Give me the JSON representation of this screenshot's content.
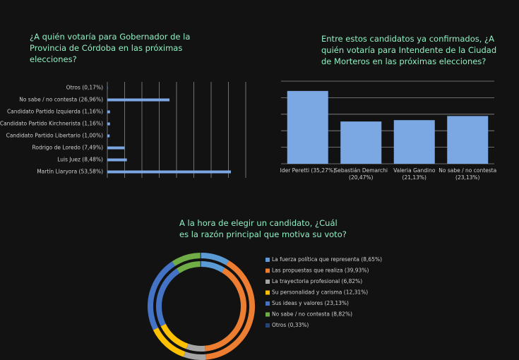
{
  "chart_data": [
    {
      "type": "hbar",
      "title": "¿A quién votaría para Gobernador de la Provincia de Córdoba en las próximas elecciones?",
      "categories": [
        "Otros (0,17%)",
        "No sabe / no contesta (26,96%)",
        "Candidato Partido Izquierda (1,16%)",
        "Candidato Partido Kirchnerista (1,16%)",
        "Candidato Partido Libertario (1,00%)",
        "Rodrigo de Loredo (7,49%)",
        "Luis Juez (8,48%)",
        "Martín Llaryora (53,58%)"
      ],
      "values": [
        0.17,
        26.96,
        1.16,
        1.16,
        1.0,
        7.49,
        8.48,
        53.58
      ],
      "color": "#7ba7e2",
      "xlim": [
        0,
        60
      ],
      "xticks": [
        0,
        7.5,
        15,
        22.5,
        30,
        37.5,
        45,
        52.5,
        60
      ],
      "grid": true
    },
    {
      "type": "bar",
      "title": "Entre estos candidatos ya confirmados, ¿A quién votaría para Intendente de la Ciudad de Morteros en las próximas elecciones?",
      "categories": [
        [
          "Ider Peretti (35,27%)"
        ],
        [
          "Sebastián Demarchi",
          "(20,47%)"
        ],
        [
          "Valeria Gandino",
          "(21,13%)"
        ],
        [
          "No sabe / no contesta",
          "(23,13%)"
        ]
      ],
      "values": [
        35.27,
        20.47,
        21.13,
        23.13
      ],
      "color": "#7ba7e2",
      "ylim": [
        0,
        40
      ],
      "yticks": [
        0,
        8,
        16,
        24,
        32,
        40
      ],
      "grid": true
    },
    {
      "type": "donut",
      "title": "A la hora de elegir un candidato, ¿Cuál es la razón principal que motiva su voto?",
      "categories": [
        "La fuerza política que representa (8,65%)",
        "Las propuestas que realiza (39,93%)",
        "La trayectoria profesional (6,82%)",
        "Su personalidad y carisma (12,31%)",
        "Sus ideas y valores (23,13%)",
        "No sabe / no contesta (8,82%)",
        "Otros (0,33%)"
      ],
      "values": [
        8.65,
        39.93,
        6.82,
        12.31,
        23.13,
        8.82,
        0.33
      ],
      "colors": [
        "#5b9bd5",
        "#ed7d31",
        "#a5a5a5",
        "#ffc000",
        "#4472c4",
        "#70ad47",
        "#264478"
      ]
    }
  ]
}
